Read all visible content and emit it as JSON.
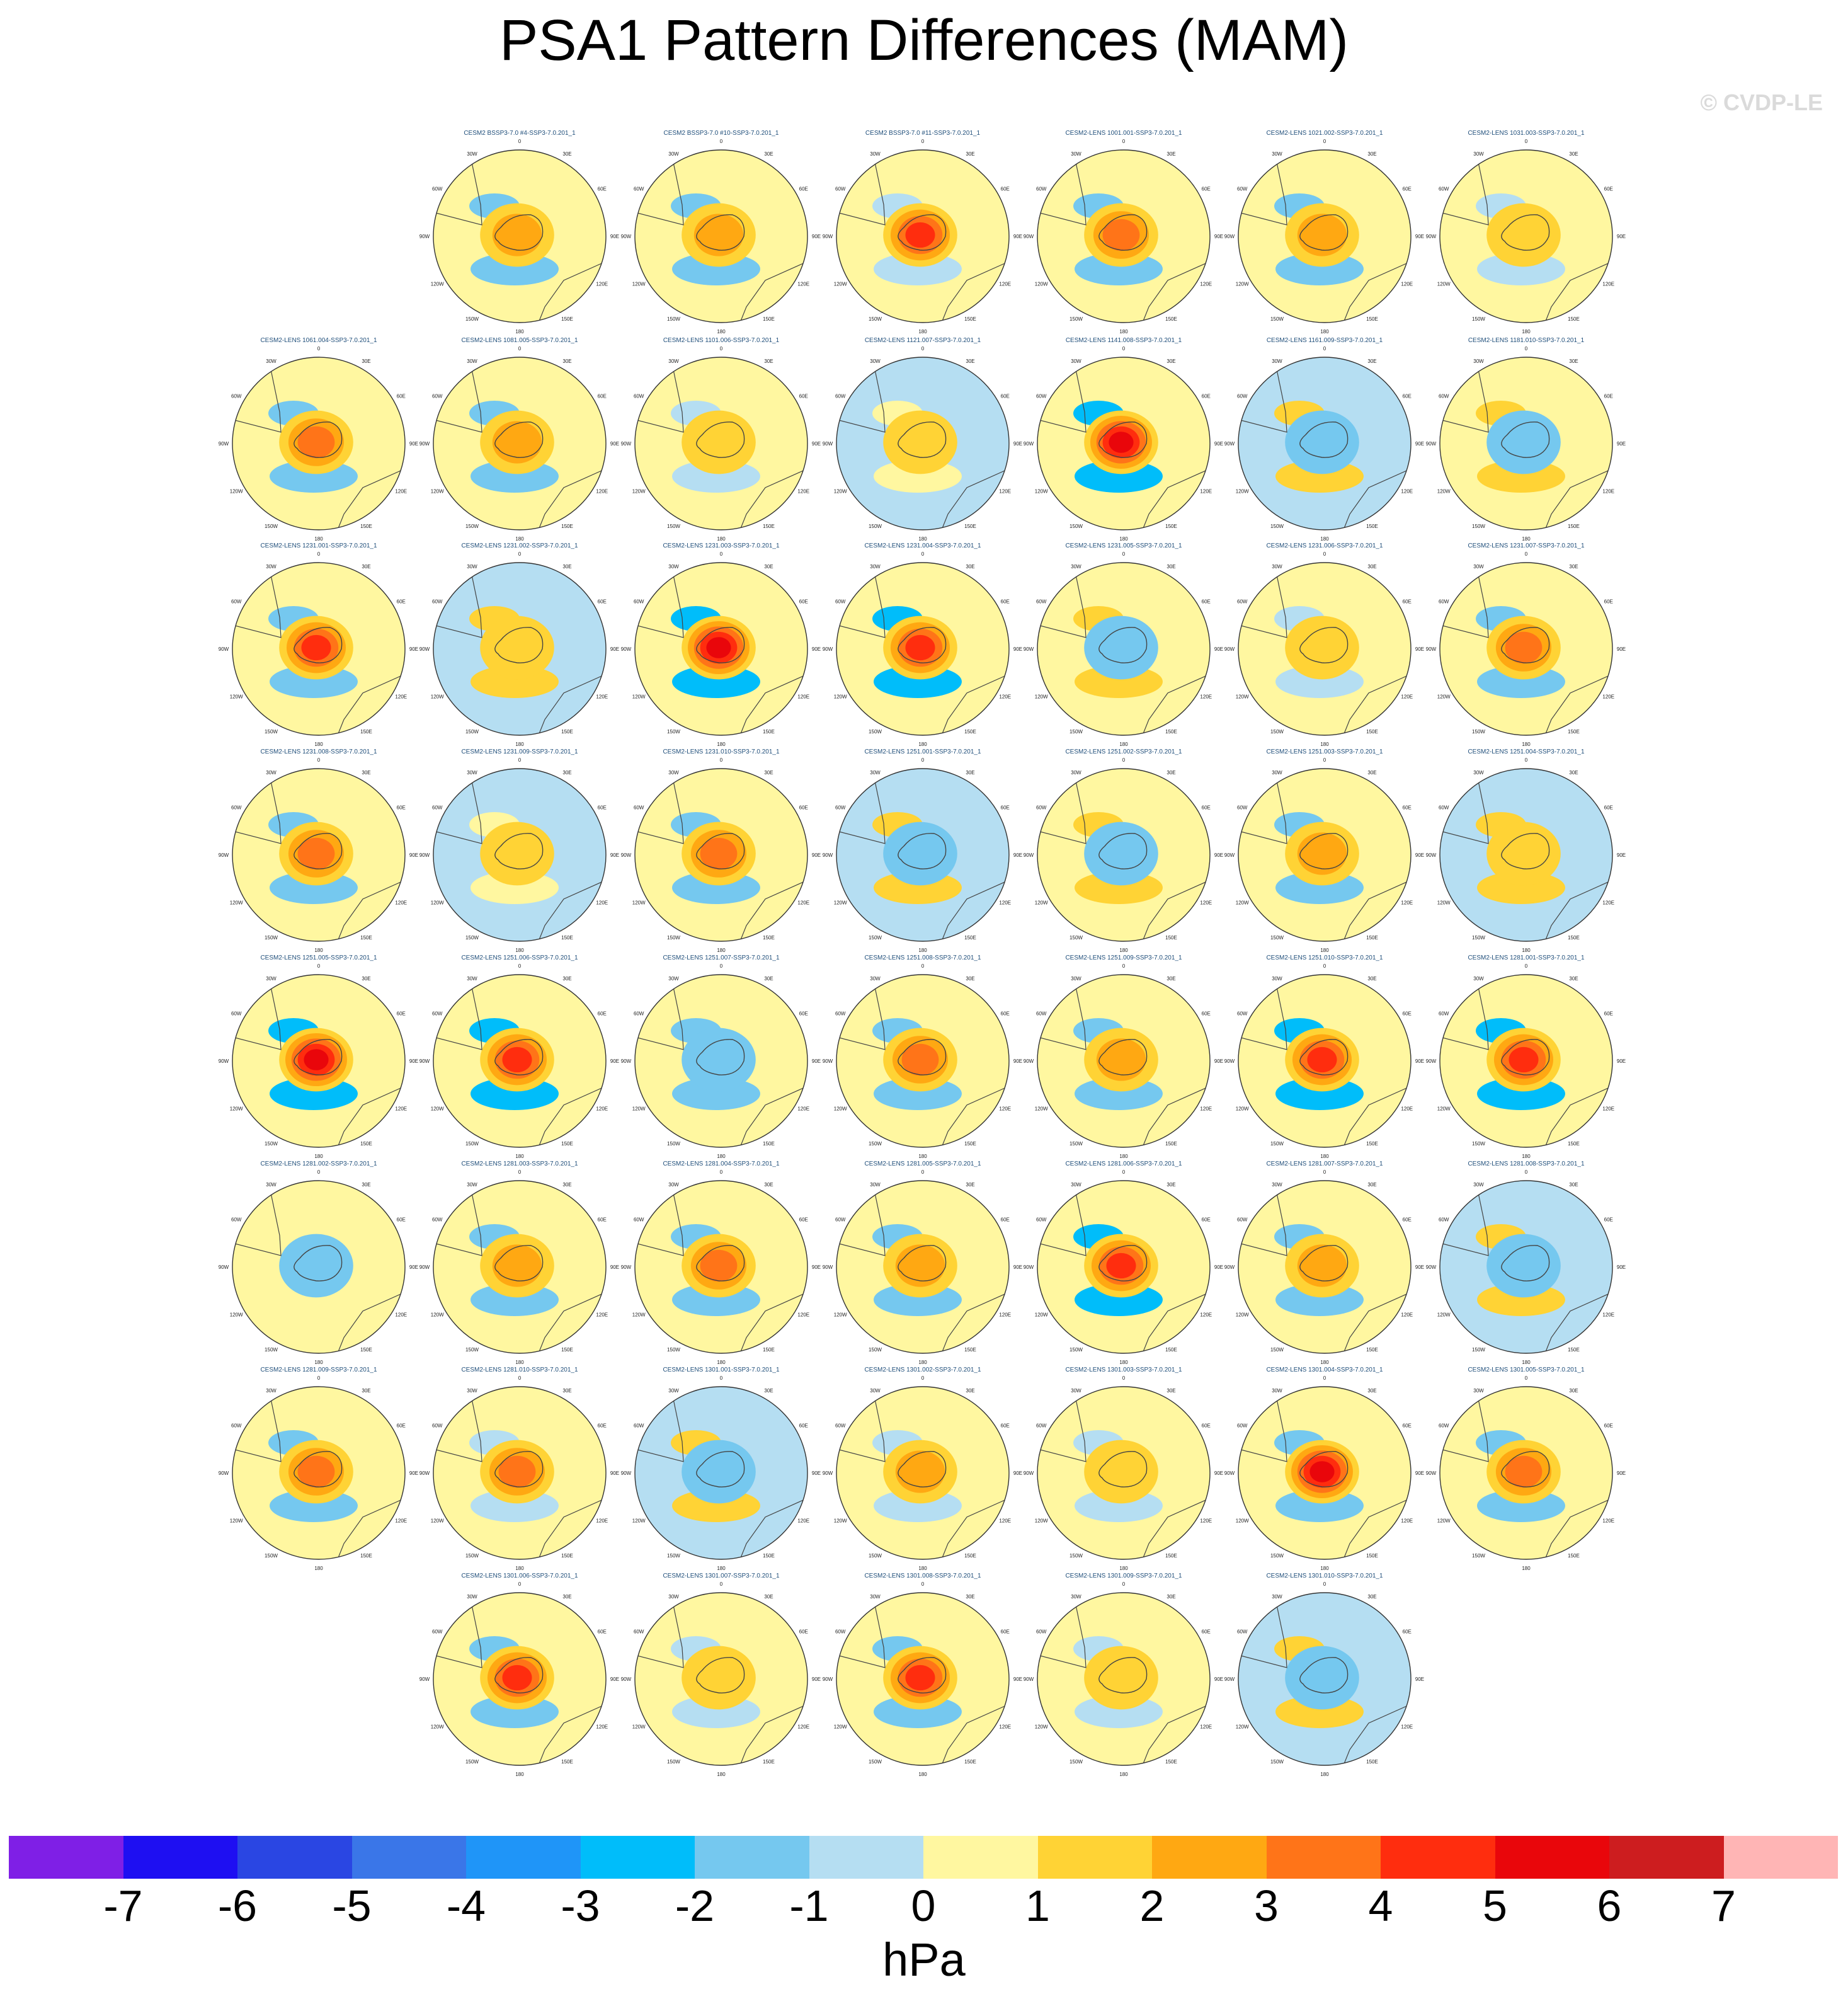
{
  "chart_data": {
    "type": "heatmap",
    "title": "PSA1 Pattern Differences (MAM)",
    "watermark": "© CVDP-LE",
    "map_lon_labels": [
      "0",
      "30E",
      "60E",
      "90E",
      "120E",
      "150E",
      "180",
      "150W",
      "120W",
      "90W",
      "60W",
      "30W"
    ],
    "colorbar": {
      "units": "hPa",
      "levels": [
        "-7",
        "-6",
        "-5",
        "-4",
        "-3",
        "-2",
        "-1",
        "0",
        "1",
        "2",
        "3",
        "4",
        "5",
        "6",
        "7"
      ],
      "colors": [
        "#7f1fe6",
        "#1e0ff2",
        "#2a46e3",
        "#3a76e8",
        "#1f95f8",
        "#00bdfa",
        "#75c8ef",
        "#b5def2",
        "#fff7a0",
        "#ffd335",
        "#ffa812",
        "#ff7418",
        "#ff2d0e",
        "#e9060b",
        "#cd1d1f",
        "#ffb5b5"
      ]
    },
    "panels": [
      {
        "title": "CESM2 BSSP3-7.0 #4-SSP3-7.0.201_1",
        "center": 2.5,
        "ring": -1.5,
        "alt": 0
      },
      {
        "title": "CESM2 BSSP3-7.0 #10-SSP3-7.0.201_1",
        "center": 2.5,
        "ring": -1.5,
        "alt": 0.5
      },
      {
        "title": "CESM2 BSSP3-7.0 #11-SSP3-7.0.201_1",
        "center": 4,
        "ring": -0.8,
        "alt": 0.5
      },
      {
        "title": "CESM2-LENS 1001.001-SSP3-7.0.201_1",
        "center": 3,
        "ring": -1.2,
        "alt": 0.6
      },
      {
        "title": "CESM2-LENS 1021.002-SSP3-7.0.201_1",
        "center": 2,
        "ring": -1.5,
        "alt": 0
      },
      {
        "title": "CESM2-LENS 1031.003-SSP3-7.0.201_1",
        "center": 0.5,
        "ring": -0.6,
        "alt": 0.5
      },
      {
        "title": "CESM2-LENS 1061.004-SSP3-7.0.201_1",
        "center": 3,
        "ring": -2,
        "alt": 0
      },
      {
        "title": "CESM2-LENS 1081.005-SSP3-7.0.201_1",
        "center": 2.5,
        "ring": -1.2,
        "alt": 0
      },
      {
        "title": "CESM2-LENS 1101.006-SSP3-7.0.201_1",
        "center": 1,
        "ring": -0.8,
        "alt": 0.5
      },
      {
        "title": "CESM2-LENS 1121.007-SSP3-7.0.201_1",
        "center": 0.5,
        "ring": 0.5,
        "alt": -0.5
      },
      {
        "title": "CESM2-LENS 1141.008-SSP3-7.0.201_1",
        "center": 5,
        "ring": -2.5,
        "alt": 0
      },
      {
        "title": "CESM2-LENS 1161.009-SSP3-7.0.201_1",
        "center": -0.5,
        "ring": 1.5,
        "alt": -0.5
      },
      {
        "title": "CESM2-LENS 1181.010-SSP3-7.0.201_1",
        "center": -0.5,
        "ring": 1,
        "alt": 0.5
      },
      {
        "title": "CESM2-LENS 1231.001-SSP3-7.0.201_1",
        "center": 4,
        "ring": -2,
        "alt": 0
      },
      {
        "title": "CESM2-LENS 1231.002-SSP3-7.0.201_1",
        "center": 1,
        "ring": 1.5,
        "alt": -0.5
      },
      {
        "title": "CESM2-LENS 1231.003-SSP3-7.0.201_1",
        "center": 5,
        "ring": -2.5,
        "alt": 0
      },
      {
        "title": "CESM2-LENS 1231.004-SSP3-7.0.201_1",
        "center": 4,
        "ring": -2.5,
        "alt": 0
      },
      {
        "title": "CESM2-LENS 1231.005-SSP3-7.0.201_1",
        "center": -0.5,
        "ring": 1.5,
        "alt": 0.5
      },
      {
        "title": "CESM2-LENS 1231.006-SSP3-7.0.201_1",
        "center": 1.5,
        "ring": -0.5,
        "alt": 0.5
      },
      {
        "title": "CESM2-LENS 1231.007-SSP3-7.0.201_1",
        "center": 3,
        "ring": -1.5,
        "alt": 0
      },
      {
        "title": "CESM2-LENS 1231.008-SSP3-7.0.201_1",
        "center": 3,
        "ring": -1.5,
        "alt": 0
      },
      {
        "title": "CESM2-LENS 1231.009-SSP3-7.0.201_1",
        "center": 0.5,
        "ring": 0.5,
        "alt": -0.5
      },
      {
        "title": "CESM2-LENS 1231.010-SSP3-7.0.201_1",
        "center": 3.5,
        "ring": -1.8,
        "alt": 0
      },
      {
        "title": "CESM2-LENS 1251.001-SSP3-7.0.201_1",
        "center": -0.5,
        "ring": 1.5,
        "alt": -0.5
      },
      {
        "title": "CESM2-LENS 1251.002-SSP3-7.0.201_1",
        "center": -0.5,
        "ring": 1,
        "alt": 0.5
      },
      {
        "title": "CESM2-LENS 1251.003-SSP3-7.0.201_1",
        "center": 2.5,
        "ring": -1.5,
        "alt": 0
      },
      {
        "title": "CESM2-LENS 1251.004-SSP3-7.0.201_1",
        "center": 1.5,
        "ring": 1,
        "alt": -0.5
      },
      {
        "title": "CESM2-LENS 1251.005-SSP3-7.0.201_1",
        "center": 5,
        "ring": -2.5,
        "alt": 0
      },
      {
        "title": "CESM2-LENS 1251.006-SSP3-7.0.201_1",
        "center": 4,
        "ring": -2.5,
        "alt": 0
      },
      {
        "title": "CESM2-LENS 1251.007-SSP3-7.0.201_1",
        "center": -1.5,
        "ring": -2,
        "alt": 0.5
      },
      {
        "title": "CESM2-LENS 1251.008-SSP3-7.0.201_1",
        "center": 3,
        "ring": -1.5,
        "alt": 0
      },
      {
        "title": "CESM2-LENS 1251.009-SSP3-7.0.201_1",
        "center": 2,
        "ring": -1.2,
        "alt": 0.5
      },
      {
        "title": "CESM2-LENS 1251.010-SSP3-7.0.201_1",
        "center": 4,
        "ring": -2.5,
        "alt": 0
      },
      {
        "title": "CESM2-LENS 1281.001-SSP3-7.0.201_1",
        "center": 4.5,
        "ring": -2.5,
        "alt": 0
      },
      {
        "title": "CESM2-LENS 1281.002-SSP3-7.0.201_1",
        "center": -0.5,
        "ring": 0.8,
        "alt": 0.5
      },
      {
        "title": "CESM2-LENS 1281.003-SSP3-7.0.201_1",
        "center": 2.5,
        "ring": -1.5,
        "alt": 0
      },
      {
        "title": "CESM2-LENS 1281.004-SSP3-7.0.201_1",
        "center": 3.5,
        "ring": -2,
        "alt": 0
      },
      {
        "title": "CESM2-LENS 1281.005-SSP3-7.0.201_1",
        "center": 2,
        "ring": -1.2,
        "alt": 0.5
      },
      {
        "title": "CESM2-LENS 1281.006-SSP3-7.0.201_1",
        "center": 4.5,
        "ring": -2.5,
        "alt": 0
      },
      {
        "title": "CESM2-LENS 1281.007-SSP3-7.0.201_1",
        "center": 2,
        "ring": -1.8,
        "alt": 0.5
      },
      {
        "title": "CESM2-LENS 1281.008-SSP3-7.0.201_1",
        "center": -0.5,
        "ring": 1.5,
        "alt": -0.5
      },
      {
        "title": "CESM2-LENS 1281.009-SSP3-7.0.201_1",
        "center": 3.5,
        "ring": -2,
        "alt": 0
      },
      {
        "title": "CESM2-LENS 1281.010-SSP3-7.0.201_1",
        "center": 3.5,
        "ring": -1,
        "alt": 0.5
      },
      {
        "title": "CESM2-LENS 1301.001-SSP3-7.0.201_1",
        "center": -1.5,
        "ring": 1.5,
        "alt": -1
      },
      {
        "title": "CESM2-LENS 1301.002-SSP3-7.0.201_1",
        "center": 2,
        "ring": -0.8,
        "alt": 0.5
      },
      {
        "title": "CESM2-LENS 1301.003-SSP3-7.0.201_1",
        "center": 1.5,
        "ring": -1,
        "alt": 0.5
      },
      {
        "title": "CESM2-LENS 1301.004-SSP3-7.0.201_1",
        "center": 5,
        "ring": -2,
        "alt": 0
      },
      {
        "title": "CESM2-LENS 1301.005-SSP3-7.0.201_1",
        "center": 3,
        "ring": -1.5,
        "alt": 0
      },
      {
        "title": "CESM2-LENS 1301.006-SSP3-7.0.201_1",
        "center": 4,
        "ring": -2,
        "alt": 0
      },
      {
        "title": "CESM2-LENS 1301.007-SSP3-7.0.201_1",
        "center": 1.5,
        "ring": -0.8,
        "alt": 0.5
      },
      {
        "title": "CESM2-LENS 1301.008-SSP3-7.0.201_1",
        "center": 4,
        "ring": -1.5,
        "alt": 0
      },
      {
        "title": "CESM2-LENS 1301.009-SSP3-7.0.201_1",
        "center": 1,
        "ring": -0.8,
        "alt": 0.5
      },
      {
        "title": "CESM2-LENS 1301.010-SSP3-7.0.201_1",
        "center": -0.5,
        "ring": 1,
        "alt": -0.5
      }
    ]
  }
}
